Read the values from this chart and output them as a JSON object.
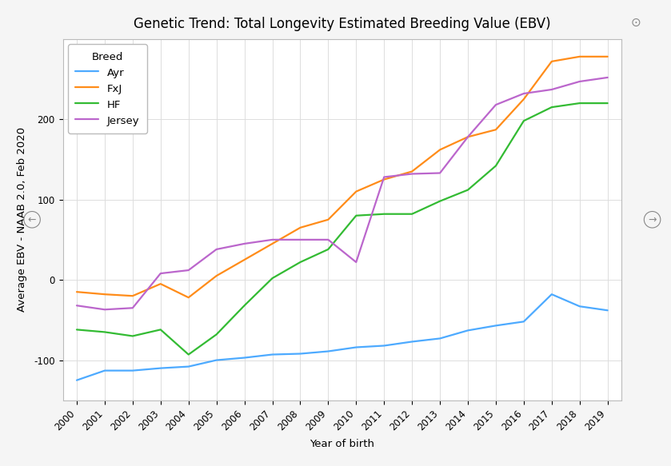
{
  "title": "Genetic Trend: Total Longevity Estimated Breeding Value (EBV)",
  "xlabel": "Year of birth",
  "ylabel": "Average EBV - NAAB 2.0, Feb 2020",
  "years": [
    2000,
    2001,
    2002,
    2003,
    2004,
    2005,
    2006,
    2007,
    2008,
    2009,
    2010,
    2011,
    2012,
    2013,
    2014,
    2015,
    2016,
    2017,
    2018,
    2019
  ],
  "Ayr": [
    -125,
    -113,
    -113,
    -110,
    -108,
    -100,
    -97,
    -93,
    -92,
    -89,
    -84,
    -82,
    -77,
    -73,
    -63,
    -57,
    -52,
    -18,
    -33,
    -38
  ],
  "FxJ": [
    -15,
    -18,
    -20,
    -5,
    -22,
    5,
    25,
    45,
    65,
    75,
    110,
    125,
    135,
    162,
    178,
    187,
    225,
    272,
    278,
    278
  ],
  "HF": [
    -62,
    -65,
    -70,
    -62,
    -93,
    -68,
    -32,
    2,
    22,
    38,
    80,
    82,
    82,
    98,
    112,
    142,
    198,
    215,
    220,
    220
  ],
  "Jersey": [
    -32,
    -37,
    -35,
    8,
    12,
    38,
    45,
    50,
    50,
    50,
    22,
    128,
    132,
    133,
    178,
    218,
    232,
    237,
    247,
    252
  ],
  "colors": {
    "Ayr": "#4DAAFF",
    "FxJ": "#FF8C19",
    "HF": "#33BB33",
    "Jersey": "#BB66CC"
  },
  "ylim": [
    -150,
    300
  ],
  "xlim": [
    1999.5,
    2019.5
  ],
  "yticks": [
    -100,
    0,
    100,
    200
  ],
  "background_color": "#F5F5F5",
  "plot_bg_color": "#FFFFFF",
  "grid_color": "#DDDDDD",
  "title_fontsize": 12,
  "label_fontsize": 9.5,
  "tick_fontsize": 8.5,
  "legend_title": "Breed",
  "linewidth": 1.6
}
